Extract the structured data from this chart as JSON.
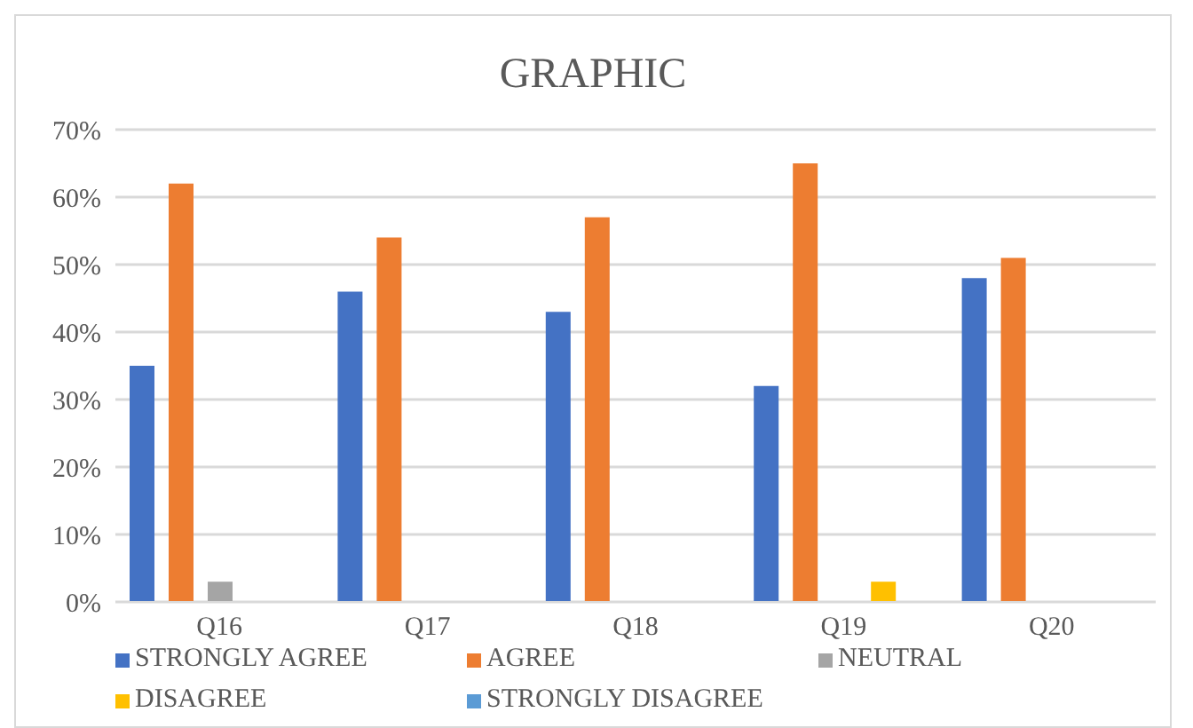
{
  "chart_data": {
    "type": "bar",
    "title": "GRAPHIC",
    "categories": [
      "Q16",
      "Q17",
      "Q18",
      "Q19",
      "Q20"
    ],
    "series": [
      {
        "name": "STRONGLY AGREE",
        "color": "#4472c4",
        "values": [
          35,
          46,
          43,
          32,
          48
        ]
      },
      {
        "name": "AGREE",
        "color": "#ed7d31",
        "values": [
          62,
          54,
          57,
          65,
          51
        ]
      },
      {
        "name": "NEUTRAL",
        "color": "#a5a5a5",
        "values": [
          3,
          0,
          0,
          0,
          0
        ]
      },
      {
        "name": "DISAGREE",
        "color": "#ffc000",
        "values": [
          0,
          0,
          0,
          3,
          0
        ]
      },
      {
        "name": "STRONGLY DISAGREE",
        "color": "#5b9bd5",
        "values": [
          0,
          0,
          0,
          0,
          0
        ]
      }
    ],
    "ylim": [
      0,
      70
    ],
    "yticks": [
      {
        "value": 0,
        "label": "0%"
      },
      {
        "value": 10,
        "label": "10%"
      },
      {
        "value": 20,
        "label": "20%"
      },
      {
        "value": 30,
        "label": "30%"
      },
      {
        "value": 40,
        "label": "40%"
      },
      {
        "value": 50,
        "label": "50%"
      },
      {
        "value": 60,
        "label": "60%"
      },
      {
        "value": 70,
        "label": "70%"
      }
    ],
    "grid": "y",
    "legend": "bottom"
  }
}
